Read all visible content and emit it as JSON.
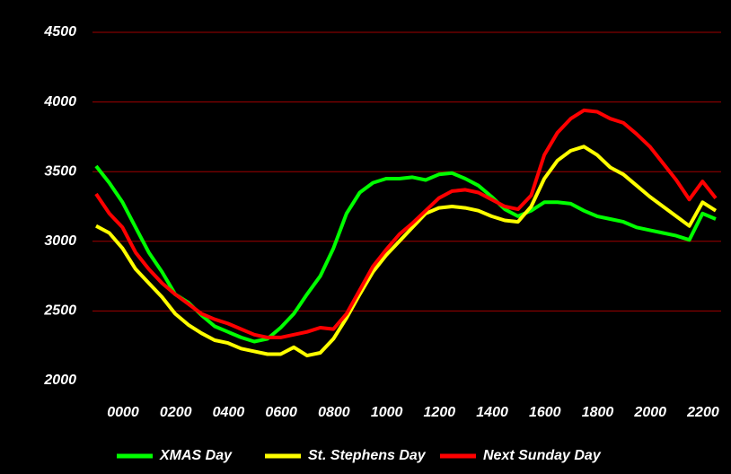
{
  "chart_data": {
    "type": "line",
    "categories": [
      "0000",
      null,
      null,
      null,
      "0200",
      null,
      null,
      null,
      "0400",
      null,
      null,
      null,
      "0600",
      null,
      null,
      null,
      "0800",
      null,
      null,
      null,
      "1000",
      null,
      null,
      null,
      "1200",
      null,
      null,
      null,
      "1400",
      null,
      null,
      null,
      "1600",
      null,
      null,
      null,
      "1800",
      null,
      null,
      null,
      "2000",
      null,
      null,
      null,
      "2200",
      null,
      null,
      null
    ],
    "series": [
      {
        "name": "XMAS Day",
        "color": "#00ff00",
        "values": [
          3540,
          3420,
          3280,
          3100,
          2920,
          2780,
          2620,
          2560,
          2470,
          2390,
          2350,
          2310,
          2280,
          2300,
          2380,
          2480,
          2620,
          2750,
          2950,
          3200,
          3350,
          3420,
          3450,
          3450,
          3460,
          3440,
          3480,
          3490,
          3450,
          3400,
          3320,
          3230,
          3180,
          3220,
          3280,
          3280,
          3270,
          3220,
          3180,
          3160,
          3140,
          3100,
          3080,
          3060,
          3040,
          3010,
          3200,
          3160
        ]
      },
      {
        "name": "St. Stephens Day",
        "color": "#ffff00",
        "values": [
          3110,
          3060,
          2950,
          2800,
          2700,
          2600,
          2480,
          2400,
          2340,
          2290,
          2270,
          2230,
          2210,
          2190,
          2190,
          2240,
          2180,
          2200,
          2300,
          2450,
          2620,
          2780,
          2900,
          3000,
          3100,
          3200,
          3240,
          3250,
          3240,
          3220,
          3180,
          3150,
          3140,
          3250,
          3450,
          3580,
          3650,
          3680,
          3620,
          3530,
          3480,
          3400,
          3320,
          3250,
          3180,
          3110,
          3280,
          3220
        ]
      },
      {
        "name": "Next Sunday Day",
        "color": "#ff0000",
        "values": [
          3340,
          3200,
          3100,
          2920,
          2800,
          2700,
          2620,
          2550,
          2480,
          2440,
          2410,
          2370,
          2330,
          2310,
          2310,
          2330,
          2350,
          2380,
          2370,
          2480,
          2650,
          2820,
          2940,
          3050,
          3130,
          3220,
          3310,
          3360,
          3370,
          3350,
          3300,
          3250,
          3230,
          3330,
          3620,
          3780,
          3880,
          3940,
          3930,
          3880,
          3850,
          3770,
          3680,
          3560,
          3440,
          3300,
          3430,
          3310
        ]
      }
    ],
    "ylim": [
      2000,
      4500
    ],
    "yticks": [
      2000,
      2500,
      3000,
      3500,
      4000,
      4500
    ],
    "grid": true,
    "legend": "bottom"
  }
}
